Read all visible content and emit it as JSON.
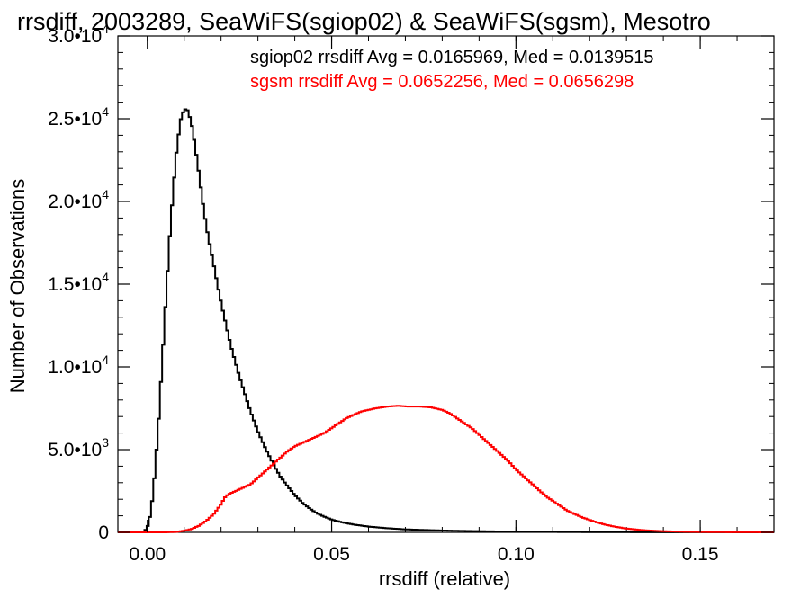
{
  "chart_data": {
    "type": "line",
    "step": true,
    "title": "rrsdiff, 2003289, SeaWiFS(sgiop02) & SeaWiFS(sgsm), Mesotro",
    "xlabel": "rrsdiff (relative)",
    "ylabel": "Number of Observations",
    "xlim": [
      -0.008,
      0.17
    ],
    "ylim": [
      0,
      30000
    ],
    "x_ticks": [
      {
        "value": 0.0,
        "label": "0.00"
      },
      {
        "value": 0.05,
        "label": "0.05"
      },
      {
        "value": 0.1,
        "label": "0.10"
      },
      {
        "value": 0.15,
        "label": "0.15"
      }
    ],
    "y_ticks": [
      {
        "value": 0,
        "mantissa": "0",
        "exp": ""
      },
      {
        "value": 5000,
        "mantissa": "5.0•10",
        "exp": "3"
      },
      {
        "value": 10000,
        "mantissa": "1.0•10",
        "exp": "4"
      },
      {
        "value": 15000,
        "mantissa": "1.5•10",
        "exp": "4"
      },
      {
        "value": 20000,
        "mantissa": "2.0•10",
        "exp": "4"
      },
      {
        "value": 25000,
        "mantissa": "2.5•10",
        "exp": "4"
      },
      {
        "value": 30000,
        "mantissa": "3.0•10",
        "exp": "4"
      }
    ],
    "x_minor_step": 0.01,
    "y_minor_step": 1000,
    "annotations": [
      {
        "text": "sgiop02 rrsdiff Avg = 0.0165969, Med = 0.0139515",
        "color": "#000000"
      },
      {
        "text": "sgsm rrsdiff Avg = 0.0652256, Med = 0.0656298",
        "color": "#ff0000"
      }
    ],
    "series": [
      {
        "color": "#000000",
        "points": [
          [
            -0.008,
            0
          ],
          [
            -0.001,
            0
          ],
          [
            0.0,
            300
          ],
          [
            0.001,
            1200
          ],
          [
            0.002,
            3500
          ],
          [
            0.003,
            6500
          ],
          [
            0.004,
            10200
          ],
          [
            0.005,
            14000
          ],
          [
            0.006,
            17600
          ],
          [
            0.007,
            20700
          ],
          [
            0.008,
            23200
          ],
          [
            0.009,
            24900
          ],
          [
            0.01,
            25600
          ],
          [
            0.011,
            25500
          ],
          [
            0.012,
            24700
          ],
          [
            0.013,
            23300
          ],
          [
            0.014,
            21700
          ],
          [
            0.015,
            20000
          ],
          [
            0.016,
            18500
          ],
          [
            0.017,
            17300
          ],
          [
            0.018,
            16200
          ],
          [
            0.019,
            15000
          ],
          [
            0.02,
            13900
          ],
          [
            0.021,
            12900
          ],
          [
            0.022,
            11900
          ],
          [
            0.023,
            11000
          ],
          [
            0.024,
            10200
          ],
          [
            0.025,
            9400
          ],
          [
            0.026,
            8700
          ],
          [
            0.027,
            8000
          ],
          [
            0.028,
            7300
          ],
          [
            0.029,
            6700
          ],
          [
            0.03,
            6100
          ],
          [
            0.032,
            5100
          ],
          [
            0.034,
            4200
          ],
          [
            0.036,
            3400
          ],
          [
            0.038,
            2800
          ],
          [
            0.04,
            2250
          ],
          [
            0.042,
            1800
          ],
          [
            0.044,
            1450
          ],
          [
            0.046,
            1150
          ],
          [
            0.048,
            950
          ],
          [
            0.05,
            770
          ],
          [
            0.053,
            600
          ],
          [
            0.056,
            470
          ],
          [
            0.06,
            350
          ],
          [
            0.065,
            250
          ],
          [
            0.07,
            180
          ],
          [
            0.08,
            110
          ],
          [
            0.09,
            70
          ],
          [
            0.1,
            40
          ],
          [
            0.11,
            25
          ],
          [
            0.12,
            15
          ],
          [
            0.14,
            6
          ],
          [
            0.17,
            2
          ]
        ]
      },
      {
        "color": "#ff0000",
        "points": [
          [
            -0.008,
            0
          ],
          [
            0.005,
            0
          ],
          [
            0.008,
            30
          ],
          [
            0.01,
            100
          ],
          [
            0.012,
            200
          ],
          [
            0.014,
            400
          ],
          [
            0.016,
            700
          ],
          [
            0.018,
            1100
          ],
          [
            0.02,
            1700
          ],
          [
            0.021,
            2100
          ],
          [
            0.022,
            2300
          ],
          [
            0.024,
            2500
          ],
          [
            0.026,
            2700
          ],
          [
            0.028,
            2900
          ],
          [
            0.03,
            3300
          ],
          [
            0.032,
            3700
          ],
          [
            0.034,
            4100
          ],
          [
            0.036,
            4500
          ],
          [
            0.038,
            4900
          ],
          [
            0.04,
            5200
          ],
          [
            0.042,
            5400
          ],
          [
            0.044,
            5600
          ],
          [
            0.046,
            5800
          ],
          [
            0.048,
            6000
          ],
          [
            0.05,
            6300
          ],
          [
            0.052,
            6600
          ],
          [
            0.054,
            6900
          ],
          [
            0.056,
            7100
          ],
          [
            0.058,
            7300
          ],
          [
            0.06,
            7400
          ],
          [
            0.062,
            7500
          ],
          [
            0.065,
            7600
          ],
          [
            0.068,
            7650
          ],
          [
            0.071,
            7600
          ],
          [
            0.074,
            7600
          ],
          [
            0.077,
            7550
          ],
          [
            0.08,
            7400
          ],
          [
            0.082,
            7200
          ],
          [
            0.084,
            6900
          ],
          [
            0.086,
            6600
          ],
          [
            0.088,
            6300
          ],
          [
            0.09,
            5900
          ],
          [
            0.092,
            5500
          ],
          [
            0.094,
            5100
          ],
          [
            0.096,
            4700
          ],
          [
            0.098,
            4300
          ],
          [
            0.1,
            3800
          ],
          [
            0.102,
            3400
          ],
          [
            0.104,
            3000
          ],
          [
            0.106,
            2600
          ],
          [
            0.108,
            2200
          ],
          [
            0.11,
            1900
          ],
          [
            0.112,
            1600
          ],
          [
            0.114,
            1300
          ],
          [
            0.116,
            1100
          ],
          [
            0.118,
            900
          ],
          [
            0.12,
            750
          ],
          [
            0.122,
            600
          ],
          [
            0.124,
            480
          ],
          [
            0.126,
            380
          ],
          [
            0.128,
            300
          ],
          [
            0.13,
            230
          ],
          [
            0.133,
            160
          ],
          [
            0.136,
            110
          ],
          [
            0.14,
            70
          ],
          [
            0.145,
            40
          ],
          [
            0.15,
            20
          ],
          [
            0.16,
            6
          ],
          [
            0.17,
            2
          ]
        ]
      }
    ]
  }
}
